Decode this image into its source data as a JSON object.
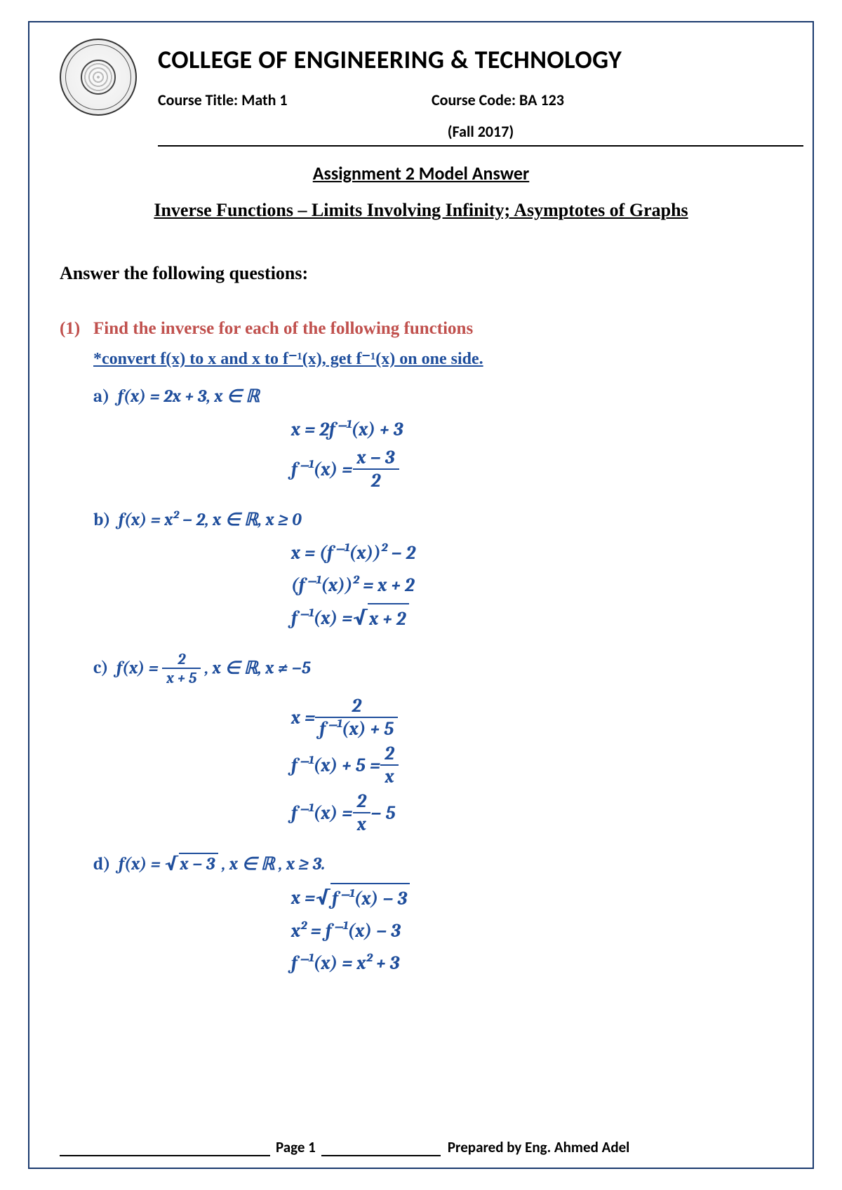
{
  "header": {
    "college": "COLLEGE OF ENGINEERING & TECHNOLOGY",
    "course_title_label": "Course Title:  Math 1",
    "course_code_label": "Course Code: BA 123",
    "semester": "(Fall 2017)"
  },
  "titles": {
    "assignment": "Assignment 2 Model Answer",
    "topic": "Inverse Functions –  Limits Involving Infinity; Asymptotes of Graphs"
  },
  "answer_heading": "Answer the following questions:",
  "q1": {
    "num": "(1)",
    "text": "Find the inverse for each of the following functions",
    "hint": "*convert f(x) to x and x to f⁻¹(x), get f⁻¹(x) on one side.",
    "a_label": "a)",
    "a_fn": "f(x) = 2x + 3, x ∈ ℝ",
    "a_s1": "x = 2f⁻¹(x) + 3",
    "a_s2_lhs": "f⁻¹(x) = ",
    "a_s2_num": "x − 3",
    "a_s2_den": "2",
    "b_label": "b)",
    "b_fn": "f(x) = x² − 2, x ∈ ℝ, x ≥ 0",
    "b_s1": "x = (f⁻¹(x))² − 2",
    "b_s2": "(f⁻¹(x))² = x + 2",
    "b_s3_lhs": "f⁻¹(x) = ",
    "b_s3_rad": "x + 2",
    "c_label": "c)",
    "c_fn_lhs": "f(x) = ",
    "c_fn_num": "2",
    "c_fn_den": "x + 5",
    "c_fn_tail": " , x ∈ ℝ, x ≠ −5",
    "c_s1_lhs": "x = ",
    "c_s1_num": "2",
    "c_s1_den": "f⁻¹(x) + 5",
    "c_s2_lhs": "f⁻¹(x) + 5 = ",
    "c_s2_num": "2",
    "c_s2_den": "x",
    "c_s3_lhs": "f⁻¹(x) = ",
    "c_s3_num": "2",
    "c_s3_den": "x",
    "c_s3_tail": " − 5",
    "d_label": "d)",
    "d_fn_lhs": "f(x) = ",
    "d_fn_rad": " x − 3",
    "d_fn_tail": ", x ∈ ℝ , x ≥ 3.",
    "d_s1_lhs": "x = ",
    "d_s1_rad": "f⁻¹(x) − 3",
    "d_s2": "x² = f⁻¹(x) − 3",
    "d_s3": "f⁻¹(x) = x² + 3"
  },
  "footer": {
    "page": "Page 1",
    "prepared": "Prepared by Eng. Ahmed Adel"
  },
  "colors": {
    "border": "#1a3a6e",
    "accent_red": "#c0504d",
    "accent_blue": "#1f4e9c"
  }
}
